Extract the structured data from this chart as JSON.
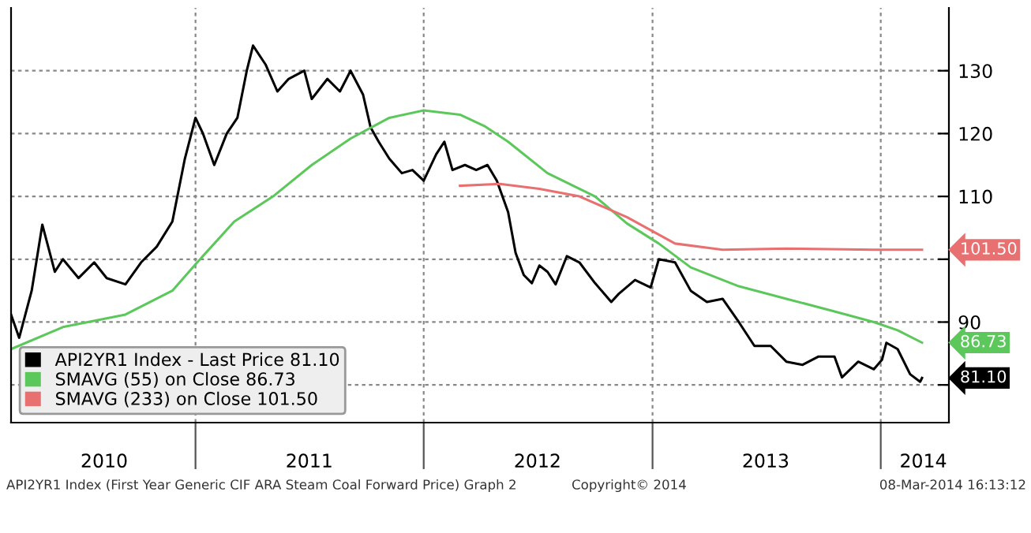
{
  "chart_data": {
    "type": "line",
    "xlim": [
      "2010-03-12",
      "2014-04-20"
    ],
    "xticks": [
      {
        "value": "2010-08-08",
        "label": "2010"
      },
      {
        "value": "2011-01-01",
        "label": null
      },
      {
        "value": "2011-07-02",
        "label": "2011"
      },
      {
        "value": "2012-01-01",
        "label": null
      },
      {
        "value": "2012-07-01",
        "label": "2012"
      },
      {
        "value": "2013-01-01",
        "label": null
      },
      {
        "value": "2013-07-01",
        "label": "2013"
      },
      {
        "value": "2014-01-01",
        "label": null
      },
      {
        "value": "2014-03-10",
        "label": "2014"
      }
    ],
    "ylim": [
      74,
      140
    ],
    "yticks": [
      {
        "value": 80,
        "label": null
      },
      90,
      {
        "value": 100,
        "label": null
      },
      110,
      120,
      130
    ],
    "grid": true,
    "legend": "bottom left",
    "series": [
      {
        "name": "API2YR1 Index - Last Price 81.10",
        "color": "#000000",
        "x": [
          "2010-03-12",
          "2010-03-25",
          "2010-04-14",
          "2010-05-01",
          "2010-05-21",
          "2010-06-03",
          "2010-06-28",
          "2010-07-23",
          "2010-08-12",
          "2010-09-11",
          "2010-10-06",
          "2010-10-31",
          "2010-11-25",
          "2010-12-15",
          "2011-01-01",
          "2011-01-13",
          "2011-01-31",
          "2011-02-20",
          "2011-03-09",
          "2011-03-24",
          "2011-04-03",
          "2011-04-23",
          "2011-05-12",
          "2011-05-30",
          "2011-06-24",
          "2011-07-06",
          "2011-07-31",
          "2011-08-20",
          "2011-09-06",
          "2011-09-26",
          "2011-10-08",
          "2011-10-21",
          "2011-11-07",
          "2011-11-27",
          "2011-12-14",
          "2012-01-01",
          "2012-01-21",
          "2012-02-03",
          "2012-02-16",
          "2012-03-07",
          "2012-03-25",
          "2012-04-12",
          "2012-04-27",
          "2012-05-15",
          "2012-05-27",
          "2012-06-09",
          "2012-06-22",
          "2012-07-04",
          "2012-07-17",
          "2012-07-30",
          "2012-08-17",
          "2012-09-06",
          "2012-10-01",
          "2012-10-27",
          "2012-11-08",
          "2012-12-04",
          "2012-12-29",
          "2013-01-11",
          "2013-02-06",
          "2013-03-03",
          "2013-03-29",
          "2013-04-23",
          "2013-05-19",
          "2013-06-13",
          "2013-07-09",
          "2013-08-03",
          "2013-08-29",
          "2013-09-23",
          "2013-10-19",
          "2013-10-31",
          "2013-11-26",
          "2013-12-21",
          "2014-01-03",
          "2014-01-10",
          "2014-01-28",
          "2014-02-17",
          "2014-03-05",
          "2014-03-08"
        ],
        "values": [
          91.2,
          87.5,
          95,
          105.5,
          98,
          100,
          97,
          99.5,
          97,
          96,
          99.5,
          102,
          106,
          116,
          122.5,
          120,
          115,
          120,
          122.5,
          130,
          134,
          131,
          126.7,
          128.7,
          130,
          125.5,
          128.7,
          126.7,
          130,
          126.2,
          121,
          118.7,
          116,
          113.7,
          114.2,
          112.5,
          116.7,
          118.7,
          114.2,
          115,
          114.2,
          115,
          112.5,
          107.5,
          101,
          97.5,
          96.2,
          99,
          98,
          96,
          100.5,
          99.5,
          96.2,
          93.2,
          94.5,
          96.7,
          95.5,
          100,
          99.5,
          95,
          93.2,
          93.7,
          90,
          86.2,
          86.2,
          83.7,
          83.2,
          84.5,
          84.5,
          81.2,
          83.7,
          82.5,
          84,
          86.7,
          85.7,
          81.7,
          80.5,
          81.1
        ]
      },
      {
        "name": "SMAVG (55) on Close 86.73",
        "color": "#5cc85c",
        "x": [
          "2010-03-12",
          "2010-06-03",
          "2010-09-11",
          "2010-11-25",
          "2011-01-01",
          "2011-03-04",
          "2011-05-05",
          "2011-07-06",
          "2011-09-06",
          "2011-11-07",
          "2012-01-01",
          "2012-02-28",
          "2012-04-07",
          "2012-05-15",
          "2012-07-17",
          "2012-10-01",
          "2012-11-21",
          "2013-01-11",
          "2013-03-03",
          "2013-05-19",
          "2013-08-03",
          "2013-10-19",
          "2013-12-21",
          "2014-01-28",
          "2014-03-08"
        ],
        "values": [
          85.7,
          89.2,
          91.2,
          95,
          99.2,
          106,
          110,
          115,
          119.2,
          122.5,
          123.7,
          123,
          121.2,
          118.7,
          113.7,
          110,
          105.7,
          102.5,
          98.7,
          95.7,
          93.7,
          91.7,
          90,
          88.7,
          86.73
        ]
      },
      {
        "name": "SMAVG (233) on Close 101.50",
        "color": "#e87070",
        "x": [
          "2012-02-28",
          "2012-05-02",
          "2012-07-04",
          "2012-09-06",
          "2012-11-21",
          "2013-02-06",
          "2013-04-23",
          "2013-08-03",
          "2013-12-21",
          "2014-03-08"
        ],
        "values": [
          111.7,
          112,
          111.2,
          110,
          106.7,
          102.5,
          101.5,
          101.7,
          101.5,
          101.5
        ]
      }
    ],
    "annotations": [
      "81.10",
      "86.73",
      "101.50",
      "API2YR1 Index (First Year Generic CIF ARA Steam Coal Forward Price) Graph 2",
      "Copyright© 2014",
      "08-Mar-2014 16:13:12"
    ]
  }
}
